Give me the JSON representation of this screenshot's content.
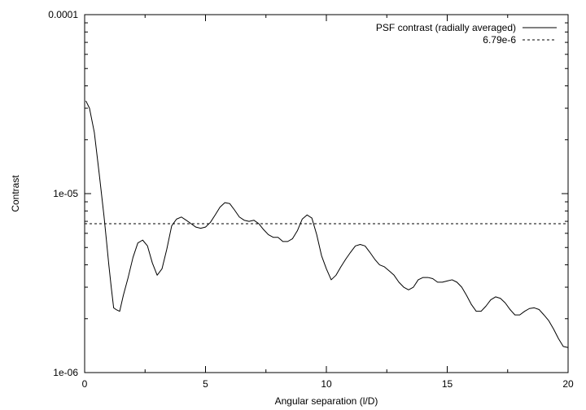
{
  "chart_data": {
    "type": "line",
    "title": "",
    "xlabel": "Angular separation (l/D)",
    "ylabel": "Contrast",
    "xlim": [
      0,
      20
    ],
    "ylim": [
      1e-06,
      0.0001
    ],
    "yscale": "log",
    "grid": false,
    "legend_position": "top-right",
    "x_ticks": [
      {
        "value": 0,
        "label": "0"
      },
      {
        "value": 5,
        "label": "5"
      },
      {
        "value": 10,
        "label": "10"
      },
      {
        "value": 15,
        "label": "15"
      },
      {
        "value": 20,
        "label": "20"
      }
    ],
    "y_ticks": [
      {
        "value": 1e-06,
        "label": "1e-06"
      },
      {
        "value": 1e-05,
        "label": "1e-05"
      },
      {
        "value": 0.0001,
        "label": "0.0001"
      }
    ],
    "series": [
      {
        "name": "PSF contrast (radially averaged)",
        "style": "solid",
        "color": "#000000",
        "x": [
          0.05,
          0.2,
          0.4,
          0.6,
          0.8,
          0.9,
          1.0,
          1.1,
          1.2,
          1.3,
          1.45,
          1.6,
          1.8,
          2.0,
          2.2,
          2.4,
          2.6,
          2.8,
          3.0,
          3.2,
          3.4,
          3.6,
          3.8,
          4.0,
          4.2,
          4.4,
          4.6,
          4.8,
          5.0,
          5.2,
          5.4,
          5.6,
          5.8,
          6.0,
          6.2,
          6.4,
          6.6,
          6.8,
          7.0,
          7.2,
          7.4,
          7.6,
          7.8,
          8.0,
          8.2,
          8.4,
          8.6,
          8.8,
          9.0,
          9.2,
          9.4,
          9.6,
          9.8,
          10.0,
          10.2,
          10.4,
          10.6,
          10.8,
          11.0,
          11.2,
          11.4,
          11.6,
          11.8,
          12.0,
          12.2,
          12.4,
          12.6,
          12.8,
          13.0,
          13.2,
          13.4,
          13.6,
          13.8,
          14.0,
          14.2,
          14.4,
          14.6,
          14.8,
          15.0,
          15.2,
          15.4,
          15.6,
          15.8,
          16.0,
          16.2,
          16.4,
          16.6,
          16.8,
          17.0,
          17.2,
          17.4,
          17.6,
          17.8,
          18.0,
          18.2,
          18.4,
          18.6,
          18.8,
          19.0,
          19.2,
          19.4,
          19.6,
          19.8,
          20.0
        ],
        "y": [
          3.3e-05,
          3e-05,
          2.2e-05,
          1.3e-05,
          7.5e-06,
          5.5e-06,
          4e-06,
          3e-06,
          2.3e-06,
          2.25e-06,
          2.2e-06,
          2.7e-06,
          3.4e-06,
          4.4e-06,
          5.3e-06,
          5.5e-06,
          5.1e-06,
          4.1e-06,
          3.5e-06,
          3.8e-06,
          4.9e-06,
          6.6e-06,
          7.2e-06,
          7.4e-06,
          7.1e-06,
          6.8e-06,
          6.5e-06,
          6.4e-06,
          6.5e-06,
          6.9e-06,
          7.6e-06,
          8.4e-06,
          8.9e-06,
          8.8e-06,
          8.1e-06,
          7.4e-06,
          7.1e-06,
          7e-06,
          7.1e-06,
          6.8e-06,
          6.3e-06,
          5.9e-06,
          5.7e-06,
          5.7e-06,
          5.4e-06,
          5.4e-06,
          5.6e-06,
          6.2e-06,
          7.2e-06,
          7.6e-06,
          7.3e-06,
          5.9e-06,
          4.5e-06,
          3.8e-06,
          3.3e-06,
          3.5e-06,
          3.9e-06,
          4.3e-06,
          4.7e-06,
          5.1e-06,
          5.2e-06,
          5.1e-06,
          4.7e-06,
          4.3e-06,
          4e-06,
          3.9e-06,
          3.7e-06,
          3.5e-06,
          3.2e-06,
          3e-06,
          2.9e-06,
          3e-06,
          3.3e-06,
          3.4e-06,
          3.4e-06,
          3.35e-06,
          3.2e-06,
          3.2e-06,
          3.25e-06,
          3.3e-06,
          3.2e-06,
          3e-06,
          2.7e-06,
          2.4e-06,
          2.2e-06,
          2.2e-06,
          2.35e-06,
          2.55e-06,
          2.65e-06,
          2.6e-06,
          2.45e-06,
          2.25e-06,
          2.1e-06,
          2.1e-06,
          2.2e-06,
          2.28e-06,
          2.3e-06,
          2.25e-06,
          2.1e-06,
          1.95e-06,
          1.75e-06,
          1.55e-06,
          1.4e-06,
          1.38e-06
        ]
      },
      {
        "name": "6.79e-6",
        "style": "dashed",
        "color": "#000000",
        "x": [
          0,
          20
        ],
        "y": [
          6.79e-06,
          6.79e-06
        ]
      }
    ]
  }
}
